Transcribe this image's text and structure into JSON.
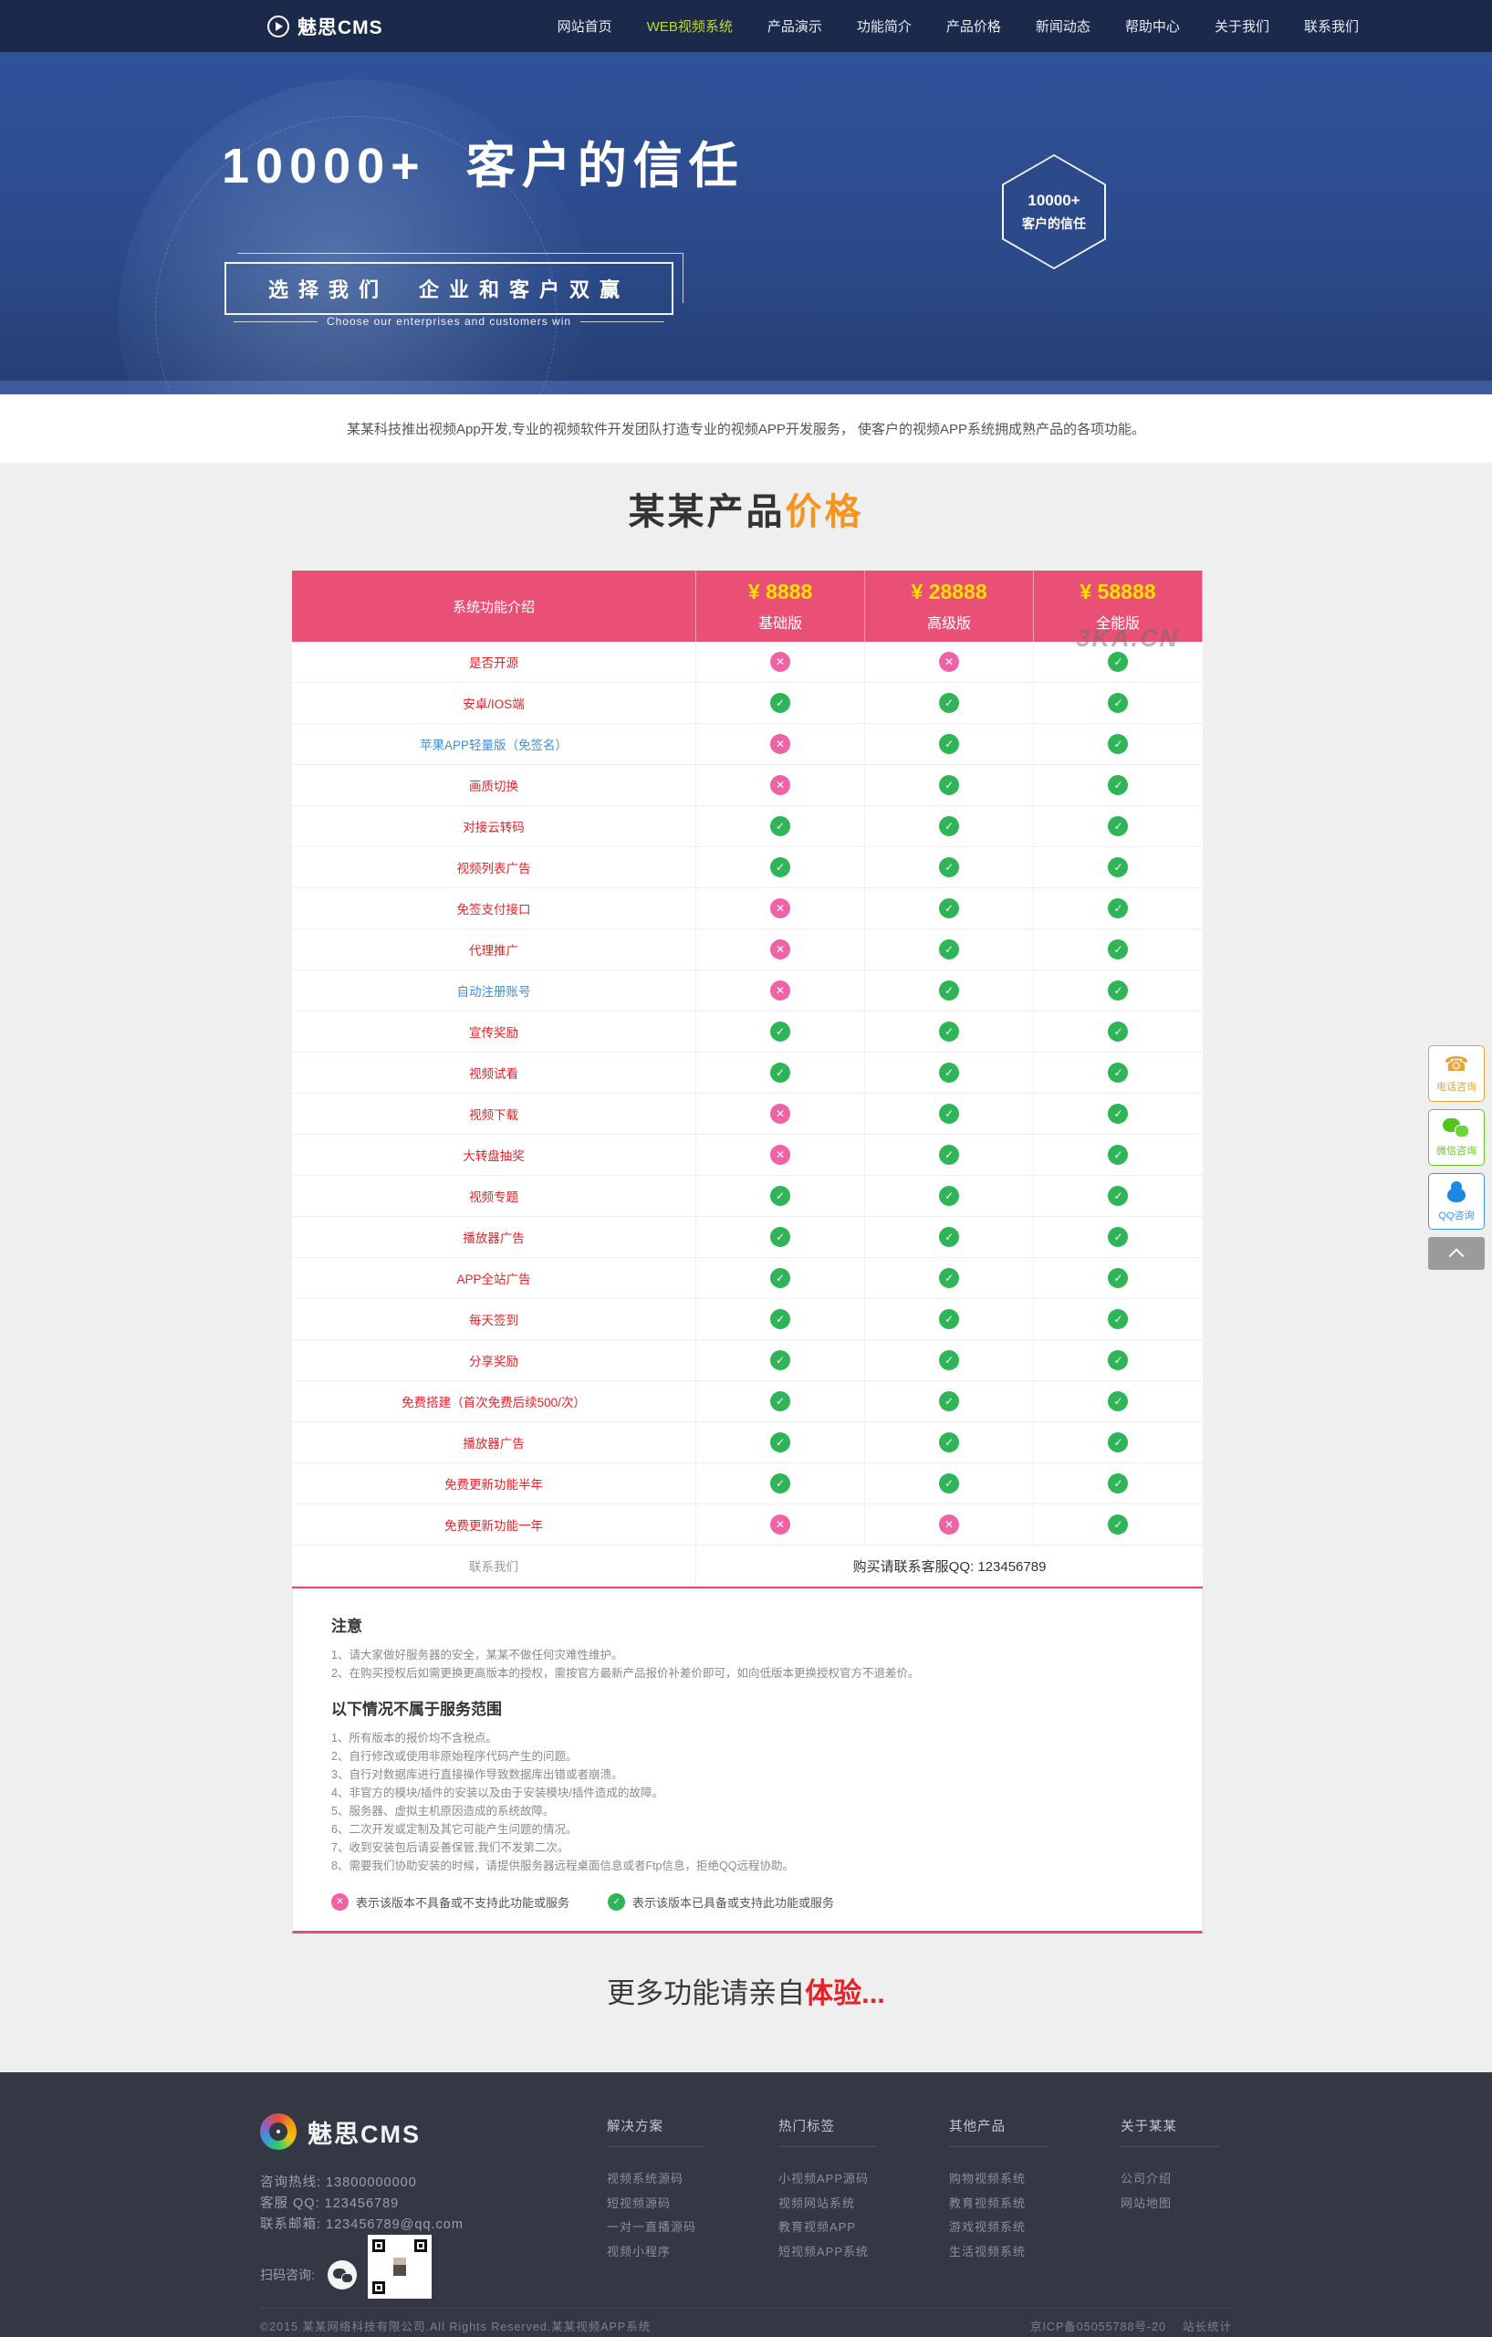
{
  "nav": {
    "logo": "魅思CMS",
    "items": [
      {
        "label": "网站首页",
        "active": false
      },
      {
        "label": "WEB视频系统",
        "active": true
      },
      {
        "label": "产品演示",
        "active": false
      },
      {
        "label": "功能简介",
        "active": false
      },
      {
        "label": "产品价格",
        "active": false
      },
      {
        "label": "新闻动态",
        "active": false
      },
      {
        "label": "帮助中心",
        "active": false
      },
      {
        "label": "关于我们",
        "active": false
      },
      {
        "label": "联系我们",
        "active": false
      }
    ]
  },
  "hero": {
    "title": "10000+  客户的信任",
    "box_cn": "选择我们　企业和客户双赢",
    "box_en": "Choose our enterprises and customers win",
    "badge_line1": "10000+",
    "badge_line2": "客户的信任"
  },
  "intro": "某某科技推出视频App开发,专业的视频软件开发团队打造专业的视频APP开发服务， 使客户的视频APP系统拥成熟产品的各项功能。",
  "section": {
    "title_main": "某某产品",
    "title_accent": "价格"
  },
  "pricing_table": {
    "feature_header": "系统功能介绍",
    "watermark": "3KA.CN",
    "plans": [
      {
        "price": "¥ 8888",
        "name": "基础版"
      },
      {
        "price": "¥ 28888",
        "name": "高级版"
      },
      {
        "price": "¥ 58888",
        "name": "全能版"
      }
    ],
    "rows": [
      {
        "feature": "是否开源",
        "style": "red",
        "values": [
          "no",
          "no",
          "yes"
        ]
      },
      {
        "feature": "安卓/IOS端",
        "style": "red",
        "values": [
          "yes",
          "yes",
          "yes"
        ]
      },
      {
        "feature": "苹果APP轻量版（免签名）",
        "style": "blue",
        "values": [
          "no",
          "yes",
          "yes"
        ]
      },
      {
        "feature": "画质切换",
        "style": "red",
        "values": [
          "no",
          "yes",
          "yes"
        ]
      },
      {
        "feature": "对接云转码",
        "style": "red",
        "values": [
          "yes",
          "yes",
          "yes"
        ]
      },
      {
        "feature": "视频列表广告",
        "style": "red",
        "values": [
          "yes",
          "yes",
          "yes"
        ]
      },
      {
        "feature": "免签支付接口",
        "style": "red",
        "values": [
          "no",
          "yes",
          "yes"
        ]
      },
      {
        "feature": "代理推广",
        "style": "red",
        "values": [
          "no",
          "yes",
          "yes"
        ]
      },
      {
        "feature": "自动注册账号",
        "style": "blue",
        "values": [
          "no",
          "yes",
          "yes"
        ]
      },
      {
        "feature": "宣传奖励",
        "style": "red",
        "values": [
          "yes",
          "yes",
          "yes"
        ]
      },
      {
        "feature": "视频试看",
        "style": "red",
        "values": [
          "yes",
          "yes",
          "yes"
        ]
      },
      {
        "feature": "视频下载",
        "style": "red",
        "values": [
          "no",
          "yes",
          "yes"
        ]
      },
      {
        "feature": "大转盘抽奖",
        "style": "red",
        "values": [
          "no",
          "yes",
          "yes"
        ]
      },
      {
        "feature": "视频专题",
        "style": "red",
        "values": [
          "yes",
          "yes",
          "yes"
        ]
      },
      {
        "feature": "播放器广告",
        "style": "red",
        "values": [
          "yes",
          "yes",
          "yes"
        ]
      },
      {
        "feature": "APP全站广告",
        "style": "red",
        "values": [
          "yes",
          "yes",
          "yes"
        ]
      },
      {
        "feature": "每天签到",
        "style": "red",
        "values": [
          "yes",
          "yes",
          "yes"
        ]
      },
      {
        "feature": "分享奖励",
        "style": "red",
        "values": [
          "yes",
          "yes",
          "yes"
        ]
      },
      {
        "feature": "免费搭建（首次免费后续500/次）",
        "style": "red",
        "values": [
          "yes",
          "yes",
          "yes"
        ]
      },
      {
        "feature": "播放器广告",
        "style": "red",
        "values": [
          "yes",
          "yes",
          "yes"
        ]
      },
      {
        "feature": "免费更新功能半年",
        "style": "red",
        "values": [
          "yes",
          "yes",
          "yes"
        ]
      },
      {
        "feature": "免费更新功能一年",
        "style": "red",
        "values": [
          "no",
          "no",
          "yes"
        ]
      }
    ],
    "contact_row": {
      "label": "联系我们",
      "text": "购买请联系客服QQ: 123456789"
    }
  },
  "notes": {
    "title1": "注意",
    "list1": [
      "1、请大家做好服务器的安全，某某不做任何灾难性维护。",
      "2、在购买授权后如需更换更高版本的授权，需按官方最新产品报价补差价即可，如向低版本更换授权官方不退差价。"
    ],
    "title2": "以下情况不属于服务范围",
    "list2": [
      "1、所有版本的报价均不含税点。",
      "2、自行修改或使用非原始程序代码产生的问题。",
      "3、自行对数据库进行直接操作导致数据库出错或者崩溃。",
      "4、非官方的模块/插件的安装以及由于安装模块/插件造成的故障。",
      "5、服务器、虚拟主机原因造成的系统故障。",
      "6、二次开发或定制及其它可能产生问题的情况。",
      "7、收到安装包后请妥善保管,我们不发第二次。",
      "8、需要我们协助安装的时候，请提供服务器远程桌面信息或者Ftp信息，拒绝QQ远程协助。"
    ],
    "legend_no": "表示该版本不具备或不支持此功能或服务",
    "legend_yes": "表示该版本已具备或支持此功能或服务"
  },
  "slogan": {
    "normal": "更多功能请亲自",
    "accent": "体验..."
  },
  "floating": [
    {
      "label": "电话咨询",
      "type": "phone"
    },
    {
      "label": "微信咨询",
      "type": "wechat"
    },
    {
      "label": "QQ咨询",
      "type": "qq"
    }
  ],
  "footer": {
    "logo": "魅思CMS",
    "contacts": [
      "咨询热线: 13800000000",
      "客服 QQ: 123456789",
      "联系邮箱: 123456789@qq.com"
    ],
    "scan_label": "扫码咨询:",
    "columns": [
      {
        "title": "解决方案",
        "links": [
          "视频系统源码",
          "短视频源码",
          "一对一直播源码",
          "视频小程序"
        ]
      },
      {
        "title": "热门标签",
        "links": [
          "小视频APP源码",
          "视频网站系统",
          "教育视频APP",
          "短视频APP系统"
        ]
      },
      {
        "title": "其他产品",
        "links": [
          "购物视频系统",
          "教育视频系统",
          "游戏视频系统",
          "生活视频系统"
        ]
      },
      {
        "title": "关于某某",
        "links": [
          "公司介绍",
          "网站地图"
        ]
      }
    ],
    "copyright": "©2015 某某网络科技有限公司.All Rights Reserved.某某视频APP系统",
    "icp": "京ICP备05055788号-20",
    "stats": "站长统计"
  },
  "colors": {
    "nav_bg": "#1b2a4b",
    "hero_blue": "#2b4a89",
    "table_header_pink": "#ea5076",
    "price_yellow": "#ffdf00",
    "check_green": "#2fb457",
    "cross_pink": "#ef62a5",
    "feature_red": "#e62129",
    "feature_blue": "#3f8fdd",
    "accent_orange": "#f7941d",
    "footer_bg": "#343844",
    "active_nav": "#bfd730"
  }
}
